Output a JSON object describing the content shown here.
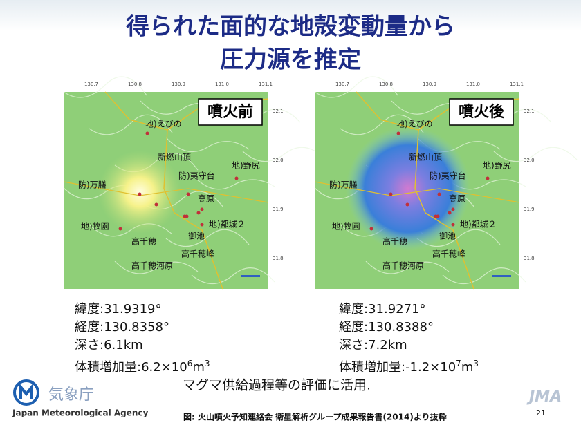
{
  "title": {
    "lines": [
      "得られた面的な地殻変動量から",
      "圧力源を推定"
    ]
  },
  "lon_ticks": [
    "130.7",
    "130.8",
    "130.9",
    "131.0",
    "131.1"
  ],
  "lat_ticks": [
    "32.1",
    "32.0",
    "31.9",
    "31.8"
  ],
  "places": [
    "地)えびの",
    "新燃山頂",
    "防)夷守台",
    "地)野尻",
    "防)万膳",
    "高原",
    "地)牧園",
    "地)都城２",
    "御池",
    "高千穂",
    "高千穂峰",
    "高千穂河原"
  ],
  "maps": [
    {
      "label": "噴火前",
      "lat": "緯度:31.9319°",
      "lon": "経度:130.8358°",
      "depth": "深さ:6.1km",
      "volume": {
        "base": "体積増加量:6.2×10",
        "exp": "6",
        "unit": "m",
        "unit_exp": "3"
      }
    },
    {
      "label": "噴火後",
      "lat": "緯度:31.9271°",
      "lon": "経度:130.8388°",
      "depth": "深さ:7.2km",
      "volume": {
        "base": "体積増加量:-1.2×10",
        "exp": "7",
        "unit": "m",
        "unit_exp": "3"
      }
    }
  ],
  "note": "マグマ供給過程等の評価に活用.",
  "logo": {
    "name_ja": "気象庁",
    "name_en": "Japan Meteorological Agency",
    "mark": "JMA"
  },
  "footer": {
    "source": "図: 火山噴火予知連絡会 衛星解析グループ成果報告書(2014)より抜粋",
    "page": "21"
  }
}
